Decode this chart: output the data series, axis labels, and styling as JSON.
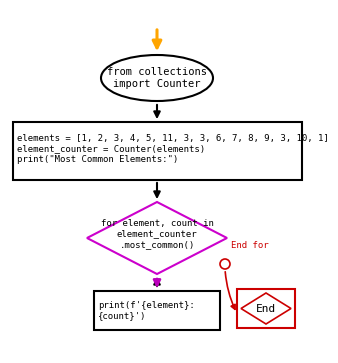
{
  "bg_color": "#ffffff",
  "arrow_orange": "#FFA500",
  "arrow_black": "#000000",
  "arrow_purple": "#BB00BB",
  "arrow_red": "#CC0000",
  "ellipse_edge": "#000000",
  "diamond_edge": "#CC00CC",
  "rect_edge": "#000000",
  "end_edge": "#CC0000",
  "ellipse_text": "from collections\nimport Counter",
  "rect_text": "elements = [1, 2, 3, 4, 5, 11, 3, 3, 6, 7, 8, 9, 3, 10, 1]\nelement_counter = Counter(elements)\nprint(\"Most Common Elements:\")",
  "diamond_text": "for element, count in\nelement_counter\n.most_common()",
  "print_text": "print(f'{element}:\n{count}')",
  "end_text": "End",
  "endfor_text": "End for",
  "font_size_small": 6.5,
  "font_size_mid": 7.5,
  "font_size_end": 8
}
